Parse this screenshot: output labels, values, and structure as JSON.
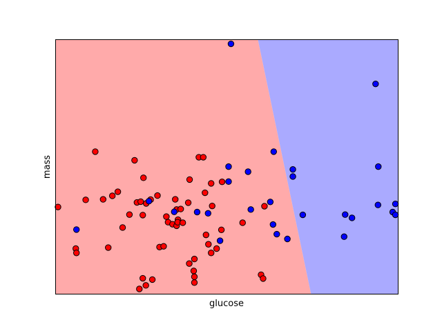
{
  "chart_data": {
    "type": "scatter",
    "title": "",
    "xlabel": "glucose",
    "ylabel": "mass",
    "xlim": [
      0,
      1000
    ],
    "ylim": [
      0,
      1000
    ],
    "ticks": "none",
    "grid": false,
    "legend": "none",
    "decision_regions": [
      {
        "class": "red",
        "color": "#ffaaaa",
        "polygon": [
          [
            0,
            0
          ],
          [
            0,
            1000
          ],
          [
            591,
            1000
          ],
          [
            746,
            0
          ]
        ]
      },
      {
        "class": "blue",
        "color": "#aaaaff",
        "polygon": [
          [
            591,
            1000
          ],
          [
            1000,
            1000
          ],
          [
            1000,
            0
          ],
          [
            746,
            0
          ]
        ]
      }
    ],
    "series": [
      {
        "class": "red",
        "color": "#ff0000",
        "points": [
          [
            6,
            342
          ],
          [
            115,
            560
          ],
          [
            230,
            526
          ],
          [
            256,
            457
          ],
          [
            418,
            538
          ],
          [
            431,
            538
          ],
          [
            87,
            370
          ],
          [
            138,
            372
          ],
          [
            165,
            386
          ],
          [
            181,
            402
          ],
          [
            237,
            360
          ],
          [
            248,
            363
          ],
          [
            264,
            356
          ],
          [
            277,
            371
          ],
          [
            297,
            387
          ],
          [
            254,
            310
          ],
          [
            349,
            372
          ],
          [
            353,
            332
          ],
          [
            365,
            334
          ],
          [
            387,
            359
          ],
          [
            436,
            398
          ],
          [
            454,
            435
          ],
          [
            457,
            346
          ],
          [
            486,
            441
          ],
          [
            391,
            450
          ],
          [
            215,
            312
          ],
          [
            195,
            261
          ],
          [
            323,
            304
          ],
          [
            328,
            282
          ],
          [
            341,
            274
          ],
          [
            353,
            268
          ],
          [
            357,
            292
          ],
          [
            356,
            282
          ],
          [
            371,
            280
          ],
          [
            439,
            232
          ],
          [
            470,
            178
          ],
          [
            484,
            252
          ],
          [
            546,
            280
          ],
          [
            446,
            195
          ],
          [
            390,
            119
          ],
          [
            405,
            67
          ],
          [
            405,
            44
          ],
          [
            254,
            61
          ],
          [
            263,
            33
          ],
          [
            282,
            56
          ],
          [
            244,
            19
          ],
          [
            58,
            178
          ],
          [
            60,
            161
          ],
          [
            153,
            182
          ],
          [
            303,
            184
          ],
          [
            315,
            187
          ],
          [
            405,
            137
          ],
          [
            454,
            161
          ],
          [
            610,
            345
          ],
          [
            600,
            75
          ],
          [
            606,
            60
          ],
          [
            403,
            90
          ]
        ]
      },
      {
        "class": "blue",
        "color": "#0000ff",
        "points": [
          [
            512,
            985
          ],
          [
            935,
            827
          ],
          [
            637,
            560
          ],
          [
            693,
            490
          ],
          [
            693,
            462
          ],
          [
            505,
            501
          ],
          [
            505,
            442
          ],
          [
            562,
            481
          ],
          [
            943,
            501
          ],
          [
            60,
            253
          ],
          [
            272,
            365
          ],
          [
            346,
            323
          ],
          [
            413,
            322
          ],
          [
            445,
            317
          ],
          [
            570,
            332
          ],
          [
            627,
            362
          ],
          [
            635,
            273
          ],
          [
            646,
            235
          ],
          [
            677,
            216
          ],
          [
            722,
            311
          ],
          [
            846,
            312
          ],
          [
            866,
            299
          ],
          [
            942,
            350
          ],
          [
            993,
            354
          ],
          [
            985,
            322
          ],
          [
            993,
            311
          ],
          [
            843,
            225
          ],
          [
            480,
            209
          ]
        ]
      }
    ]
  }
}
